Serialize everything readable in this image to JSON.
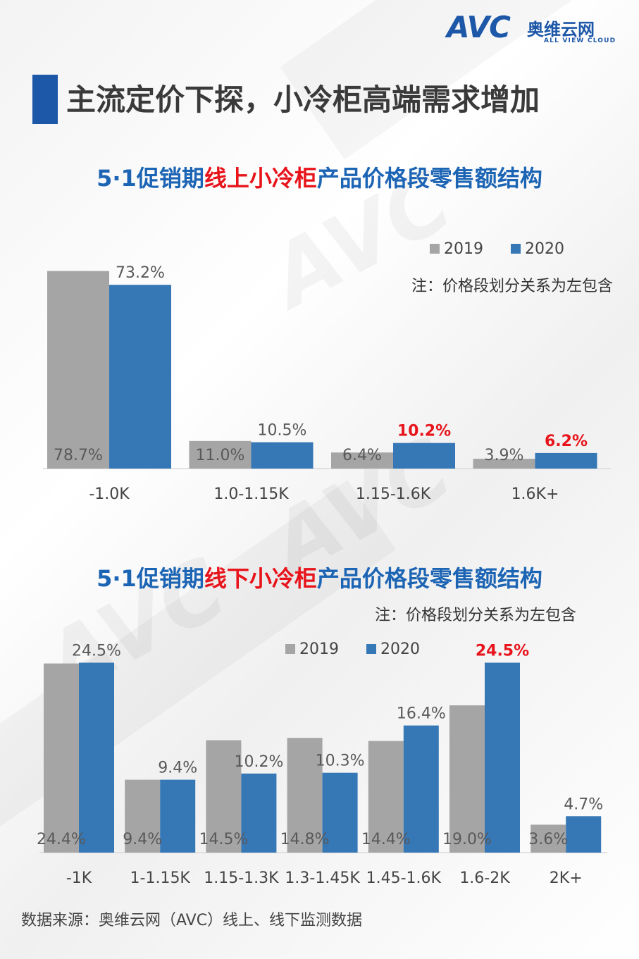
{
  "logo": {
    "mark": "AVC",
    "name_cn": "奥维云网",
    "name_en": "ALL VIEW CLOUD"
  },
  "page_title": "主流定价下探，小冷柜高端需求增加",
  "source": "数据来源：奥维云网（AVC）线上、线下监测数据",
  "colors": {
    "s2019": "#a5a5a5",
    "s2020": "#3677b6",
    "highlight": "#e8141b",
    "title_blue": "#1c64b4",
    "brand": "#1c57a8"
  },
  "chart_data": [
    {
      "type": "bar",
      "title_parts": [
        "5·1促销期",
        "线上小冷柜",
        "产品价格段零售额结构"
      ],
      "note": "注：价格段划分关系为左包含",
      "categories": [
        "-1.0K",
        "1.0-1.15K",
        "1.15-1.6K",
        "1.6K+"
      ],
      "series": [
        {
          "name": "2019",
          "values": [
            78.7,
            11.0,
            6.4,
            3.9
          ],
          "labels": [
            "78.7%",
            "11.0%",
            "6.4%",
            "3.9%"
          ]
        },
        {
          "name": "2020",
          "values": [
            73.2,
            10.5,
            10.2,
            6.2
          ],
          "labels": [
            "73.2%",
            "10.5%",
            "10.2%",
            "6.2%"
          ],
          "highlight": [
            false,
            false,
            true,
            true
          ]
        }
      ],
      "ylim": [
        0,
        80
      ],
      "legend_position": "top-right",
      "grid": false
    },
    {
      "type": "bar",
      "title_parts": [
        "5·1促销期",
        "线下小冷柜",
        "产品价格段零售额结构"
      ],
      "note": "注：价格段划分关系为左包含",
      "categories": [
        "-1K",
        "1-1.15K",
        "1.15-1.3K",
        "1.3-1.45K",
        "1.45-1.6K",
        "1.6-2K",
        "2K+"
      ],
      "series": [
        {
          "name": "2019",
          "values": [
            24.4,
            9.4,
            14.5,
            14.8,
            14.4,
            19.0,
            3.6
          ],
          "labels": [
            "24.4%",
            "9.4%",
            "14.5%",
            "14.8%",
            "14.4%",
            "19.0%",
            "3.6%"
          ]
        },
        {
          "name": "2020",
          "values": [
            24.5,
            9.4,
            10.2,
            10.3,
            16.4,
            24.5,
            4.7
          ],
          "labels": [
            "24.5%",
            "9.4%",
            "10.2%",
            "10.3%",
            "16.4%",
            "24.5%",
            "4.7%"
          ],
          "highlight": [
            false,
            false,
            false,
            false,
            false,
            true,
            false
          ]
        }
      ],
      "ylim": [
        0,
        25
      ],
      "legend_position": "top-right",
      "grid": false
    }
  ]
}
